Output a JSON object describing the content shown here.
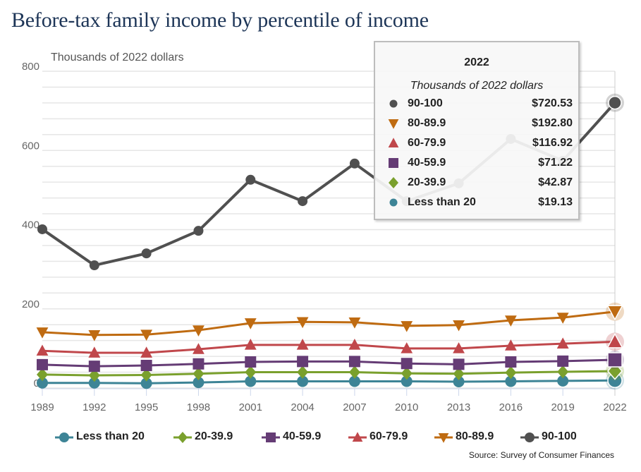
{
  "title": "Before-tax family income by percentile of income",
  "chart_data": {
    "type": "line",
    "title": "Before-tax family income by percentile of income",
    "ylabel": "Thousands of 2022 dollars",
    "xlabel": "",
    "ylim": [
      0,
      800
    ],
    "yticks": [
      0,
      200,
      400,
      600,
      800
    ],
    "ytick_labels": [
      "0",
      "200",
      "400",
      "600",
      "800"
    ],
    "grid": true,
    "grid_step": 40,
    "x": [
      "1989",
      "1992",
      "1995",
      "1998",
      "2001",
      "2004",
      "2007",
      "2010",
      "2013",
      "2016",
      "2019",
      "2022"
    ],
    "series": [
      {
        "key": "lt20",
        "name": "Less than 20",
        "color": "#3d8496",
        "marker": "circle",
        "values": [
          13,
          13,
          12,
          14,
          17,
          17,
          17,
          17,
          16,
          17,
          18,
          19.13
        ]
      },
      {
        "key": "p20",
        "name": "20-39.9",
        "color": "#7aa02d",
        "marker": "diamond",
        "values": [
          34,
          32,
          33,
          36,
          40,
          40,
          40,
          37,
          36,
          39,
          41,
          42.87
        ]
      },
      {
        "key": "p40",
        "name": "40-59.9",
        "color": "#653c75",
        "marker": "square",
        "values": [
          59,
          55,
          57,
          61,
          66,
          67,
          67,
          62,
          60,
          66,
          68,
          71.22
        ]
      },
      {
        "key": "p60",
        "name": "60-79.9",
        "color": "#c0474b",
        "marker": "triangle",
        "values": [
          94,
          89,
          89,
          98,
          109,
          109,
          109,
          100,
          100,
          107,
          112,
          116.92
        ]
      },
      {
        "key": "p80",
        "name": "80-89.9",
        "color": "#bf6b11",
        "marker": "triangle-down",
        "values": [
          141,
          134,
          135,
          146,
          164,
          167,
          166,
          157,
          159,
          171,
          178,
          192.8
        ]
      },
      {
        "key": "p90",
        "name": "90-100",
        "color": "#505050",
        "marker": "circle",
        "values": [
          401,
          310,
          340,
          397,
          526,
          472,
          567,
          472,
          517,
          629,
          574,
          720.53
        ]
      }
    ],
    "legend_position": "bottom",
    "highlighted_x": "2022",
    "source": "Source: Survey of Consumer Finances"
  },
  "tooltip": {
    "year": "2022",
    "units": "Thousands of 2022 dollars",
    "rows": [
      {
        "label": "90-100",
        "value": "$720.53",
        "color": "#505050",
        "marker": "circle"
      },
      {
        "label": "80-89.9",
        "value": "$192.80",
        "color": "#bf6b11",
        "marker": "triangle-down"
      },
      {
        "label": "60-79.9",
        "value": "$116.92",
        "color": "#c0474b",
        "marker": "triangle"
      },
      {
        "label": "40-59.9",
        "value": "$71.22",
        "color": "#653c75",
        "marker": "square"
      },
      {
        "label": "20-39.9",
        "value": "$42.87",
        "color": "#7aa02d",
        "marker": "diamond"
      },
      {
        "label": "Less than 20",
        "value": "$19.13",
        "color": "#3d8496",
        "marker": "circle"
      }
    ]
  },
  "legend": [
    {
      "label": "Less than 20",
      "color": "#3d8496",
      "marker": "circle"
    },
    {
      "label": "20-39.9",
      "color": "#7aa02d",
      "marker": "diamond"
    },
    {
      "label": "40-59.9",
      "color": "#653c75",
      "marker": "square"
    },
    {
      "label": "60-79.9",
      "color": "#c0474b",
      "marker": "triangle"
    },
    {
      "label": "80-89.9",
      "color": "#bf6b11",
      "marker": "triangle-down"
    },
    {
      "label": "90-100",
      "color": "#505050",
      "marker": "circle"
    }
  ],
  "source": "Source: Survey of Consumer Finances"
}
